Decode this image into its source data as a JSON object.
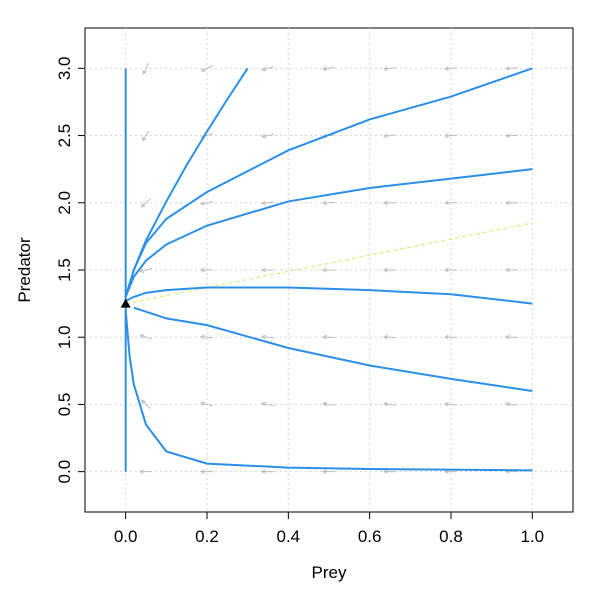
{
  "chart_data": {
    "type": "line",
    "xlabel": "Prey",
    "ylabel": "Predator",
    "xlim": [
      -0.1,
      1.1
    ],
    "ylim": [
      -0.3,
      3.3
    ],
    "xticks": [
      {
        "value": 0,
        "label": "0.0"
      },
      0.2,
      0.4,
      0.6,
      0.8,
      {
        "value": 1,
        "label": "1.0"
      }
    ],
    "yticks": [
      {
        "value": 0,
        "label": "0.0"
      },
      0.5,
      {
        "value": 1,
        "label": "1.0"
      },
      1.5,
      {
        "value": 2,
        "label": "2.0"
      },
      2.5,
      {
        "value": 3,
        "label": "3.0"
      }
    ],
    "grid": true,
    "vector_field": {
      "color": "#bdbdbd",
      "x": [
        0.05,
        0.2,
        0.35,
        0.5,
        0.65,
        0.8,
        0.95
      ],
      "y": [
        0,
        0.5,
        1,
        1.5,
        2,
        2.5,
        3
      ],
      "angle": [
        [
          180,
          180,
          180,
          180,
          180,
          180,
          180
        ],
        [
          135.9,
          164.9,
          170.3,
          172.6,
          173.8,
          174.5,
          175.1
        ],
        [
          160.8,
          173.4,
          175.3,
          176.1,
          176.5,
          176.8,
          176.9
        ],
        [
          195.3,
          182.3,
          180.4,
          179.6,
          179.2,
          179.0,
          178.8
        ],
        [
          221.8,
          191.1,
          185.5,
          183.2,
          182.0,
          181.2,
          180.7
        ],
        [
          236.6,
          199.4,
          190.5,
          186.7,
          184.7,
          183.4,
          182.5
        ],
        [
          244.9,
          206.9,
          195.3,
          190.2,
          187.4,
          185.6,
          184.4
        ]
      ]
    },
    "nullcline": {
      "color": "#d6ef7c",
      "x": [
        0,
        1
      ],
      "values": [
        1.25,
        1.85
      ]
    },
    "series": [
      {
        "color": "#2b8fe8",
        "x": [
          0,
          0,
          0
        ],
        "values": [
          3,
          1.25,
          0
        ]
      },
      {
        "color": "#2b8fe8",
        "x": [
          0.3,
          0.25,
          0.2,
          0.15,
          0.1,
          0.05,
          0.02,
          0
        ],
        "values": [
          3.0,
          2.77,
          2.53,
          2.28,
          2.01,
          1.72,
          1.5,
          1.3
        ]
      },
      {
        "color": "#2b8fe8",
        "x": [
          1,
          0.8,
          0.6,
          0.4,
          0.2,
          0.1,
          0.05,
          0.02,
          0
        ],
        "values": [
          3.0,
          2.79,
          2.62,
          2.39,
          2.08,
          1.88,
          1.7,
          1.5,
          1.3
        ]
      },
      {
        "color": "#2b8fe8",
        "x": [
          1,
          0.8,
          0.6,
          0.4,
          0.2,
          0.1,
          0.05,
          0.02,
          0
        ],
        "values": [
          2.25,
          2.18,
          2.11,
          2.01,
          1.83,
          1.69,
          1.57,
          1.45,
          1.3
        ]
      },
      {
        "color": "#2b8fe8",
        "x": [
          1,
          0.8,
          0.6,
          0.4,
          0.2,
          0.1,
          0.05,
          0.02,
          0
        ],
        "values": [
          1.25,
          1.32,
          1.35,
          1.37,
          1.37,
          1.35,
          1.33,
          1.3,
          1.27
        ]
      },
      {
        "color": "#2b8fe8",
        "x": [
          1,
          0.8,
          0.6,
          0.4,
          0.2,
          0.1,
          0.02
        ],
        "values": [
          0.6,
          0.69,
          0.79,
          0.92,
          1.09,
          1.14,
          1.22
        ]
      },
      {
        "color": "#2b8fe8",
        "x": [
          1,
          0.6,
          0.4,
          0.2,
          0.1,
          0.05,
          0.02,
          0.01,
          0
        ],
        "values": [
          0.01,
          0.02,
          0.03,
          0.06,
          0.15,
          0.35,
          0.65,
          0.85,
          1.2
        ]
      }
    ],
    "equilibrium": {
      "color": "#000000",
      "x": 0,
      "y": 1.25
    }
  }
}
